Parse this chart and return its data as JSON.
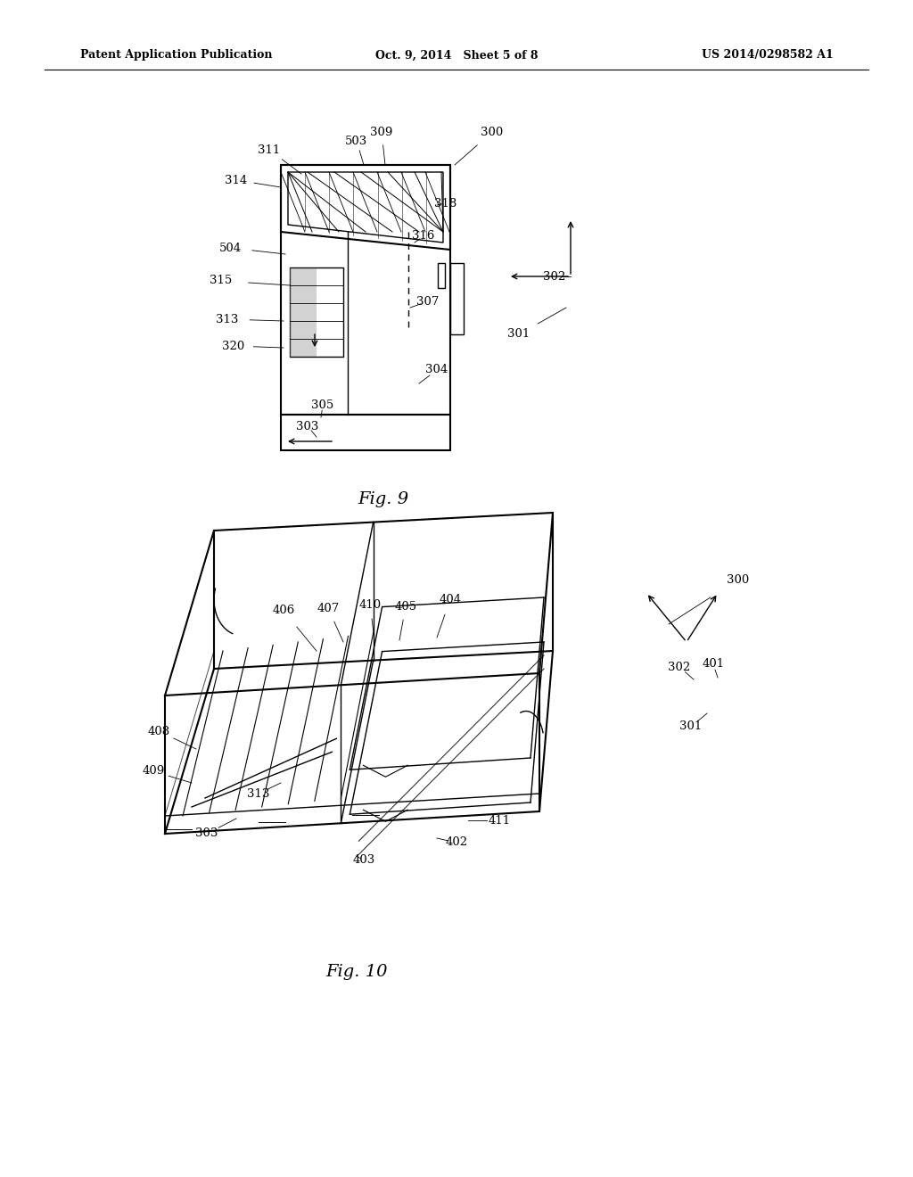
{
  "bg_color": "#ffffff",
  "line_color": "#000000",
  "header_left": "Patent Application Publication",
  "header_mid": "Oct. 9, 2014   Sheet 5 of 8",
  "header_right": "US 2014/0298582 A1",
  "fig9_label": "Fig. 9",
  "fig10_label": "Fig. 10"
}
